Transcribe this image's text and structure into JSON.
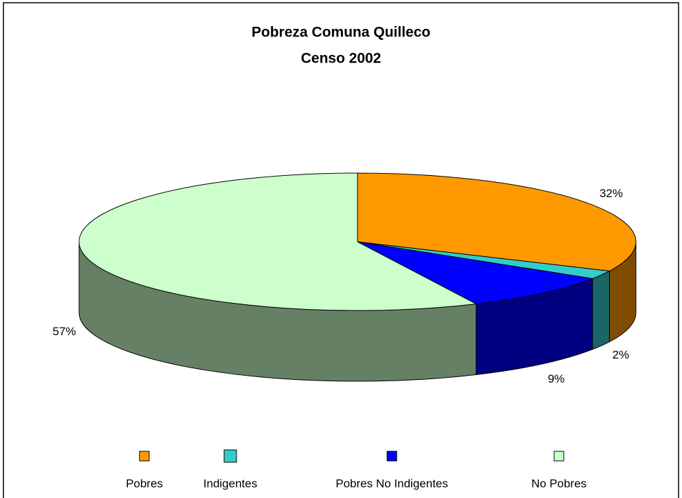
{
  "chart_data": {
    "type": "pie",
    "title": "Pobreza Comuna Quilleco",
    "subtitle": "Censo 2002",
    "categories": [
      "Pobres",
      "Indigentes",
      "Pobres No Indigentes",
      "No Pobres"
    ],
    "values": [
      32,
      2,
      9,
      57
    ],
    "value_labels": [
      "32%",
      "2%",
      "9%",
      "57%"
    ],
    "colors": [
      "#FF9900",
      "#33CCCC",
      "#0000FF",
      "#CCFFCC"
    ],
    "legend": "bottom"
  }
}
